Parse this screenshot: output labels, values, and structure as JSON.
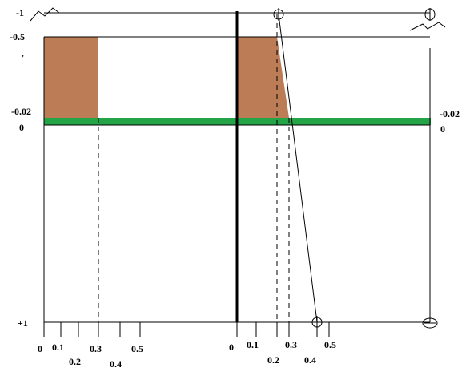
{
  "colors": {
    "brown_fill": "#bc7d56",
    "green_band": "#23a547",
    "ink": "#000000",
    "background": "#ffffff"
  },
  "left_axis": {
    "labels": [
      {
        "text": "-1"
      },
      {
        "text": "-0.5"
      },
      {
        "text": "-0.02"
      },
      {
        "text": "0"
      },
      {
        "text": "+1"
      }
    ]
  },
  "right_axis": {
    "labels": [
      {
        "text": "-0.02"
      },
      {
        "text": "0"
      }
    ]
  },
  "left_panel_ticks": [
    "0",
    "0.1",
    "0.2",
    "0.3",
    "0.4",
    "0.5"
  ],
  "right_panel_ticks": [
    "0",
    "0.1",
    "0.2",
    "0.3",
    "0.4",
    "0.5"
  ]
}
